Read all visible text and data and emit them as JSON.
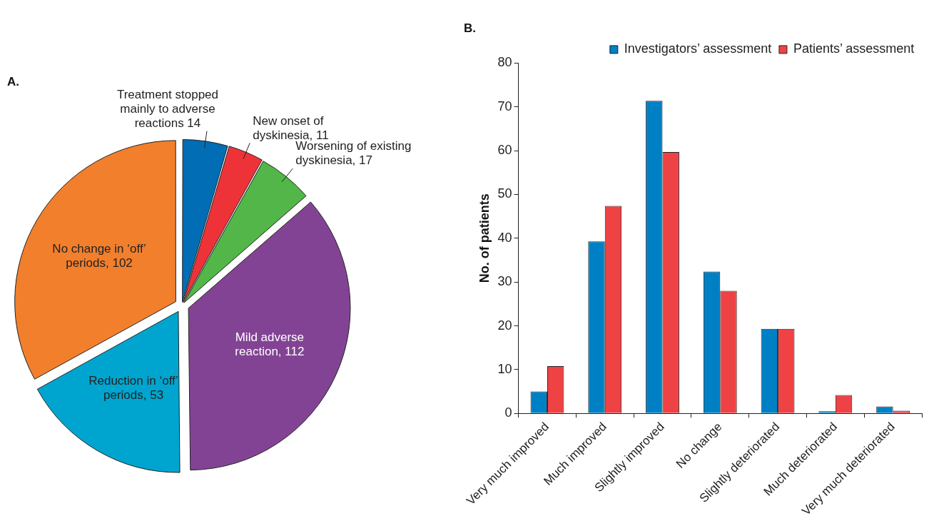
{
  "chart_data": [
    {
      "type": "pie",
      "title": "A.",
      "categories": [
        "Treatment stopped mainly to adverse reactions 14",
        "New onset of dyskinesia, 11",
        "Worsening of existing dyskinesia, 17",
        "Mild adverse reaction, 112",
        "Reduction in ‘off’ periods, 53",
        "No change in ‘off’ periods, 102"
      ],
      "values": [
        14,
        11,
        17,
        112,
        53,
        102
      ],
      "colors": [
        "#006db5",
        "#ee3338",
        "#52b748",
        "#834394",
        "#00a5cf",
        "#f27f2c"
      ],
      "legend": false
    },
    {
      "type": "bar",
      "title": "B.",
      "ylabel": "No. of patients",
      "categories": [
        "Very much improved",
        "Much improved",
        "Slightly improved",
        "No change",
        "Slightly deteriorated",
        "Much deteriorated",
        "Very much deteriorated"
      ],
      "series": [
        {
          "name": "Investigators’ assessment",
          "color": "#0080c4",
          "values": [
            5,
            39.3,
            71.4,
            32.4,
            19.3,
            0.5,
            1.6
          ]
        },
        {
          "name": "Patients’ assessment",
          "color": "#ef4244",
          "values": [
            10.8,
            47.4,
            59.7,
            28,
            19.3,
            4.2,
            0.6
          ]
        }
      ],
      "ylim": [
        0,
        80
      ],
      "yticks": [
        0,
        10,
        20,
        30,
        40,
        50,
        60,
        70,
        80
      ],
      "grid": false,
      "legend": "top right"
    }
  ]
}
